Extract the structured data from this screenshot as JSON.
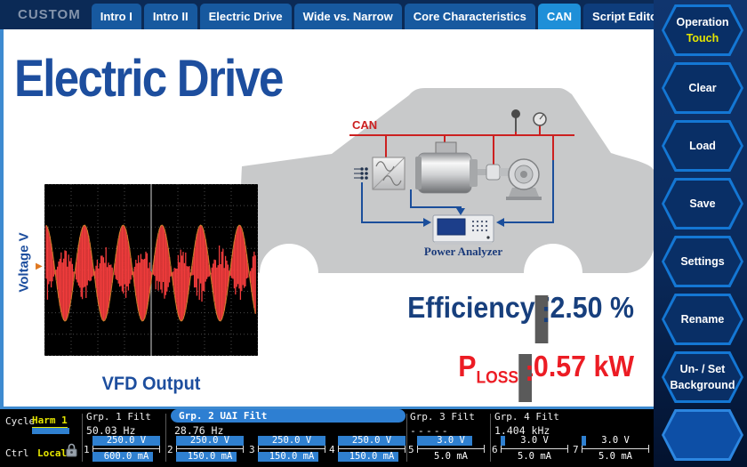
{
  "header": {
    "device_label": "CUSTOM",
    "tabs": [
      {
        "label": "Intro I"
      },
      {
        "label": "Intro II"
      },
      {
        "label": "Electric Drive"
      },
      {
        "label": "Wide vs. Narrow"
      },
      {
        "label": "Core Characteristics"
      },
      {
        "label": "CAN"
      },
      {
        "label": "Script Editor"
      }
    ]
  },
  "sidebar": {
    "buttons": [
      {
        "line1": "Operation",
        "line2": "Touch"
      },
      {
        "line1": "Clear"
      },
      {
        "line1": "Load"
      },
      {
        "line1": "Save"
      },
      {
        "line1": "Settings"
      },
      {
        "line1": "Rename"
      },
      {
        "line1": "Un- / Set",
        "line2": "Background"
      },
      {
        "line1": ""
      }
    ]
  },
  "main": {
    "title": "Electric Drive",
    "scope": {
      "y_axis_label": "Voltage V",
      "caption": "VFD Output",
      "trigger_marker": "▶"
    },
    "diagram": {
      "bus_label": "CAN",
      "analyzer_label": "Power Analyzer"
    },
    "metrics": {
      "efficiency_label": "Efficiency",
      "separator": ":",
      "efficiency_value": "72.50 %",
      "ploss_base": "P",
      "ploss_sub": "LOSS",
      "ploss_value": "10.57 kW"
    }
  },
  "statusbar": {
    "cycle_label": "Cycle",
    "cycle_value": "Harm 1",
    "ctrl_label": "Ctrl",
    "ctrl_value": "Local",
    "groups": [
      {
        "name": "Grp. 1 Filt",
        "freq": "50.03 Hz"
      },
      {
        "name": "Grp. 2 U∆I Filt",
        "freq": "28.76 Hz"
      },
      {
        "name": "Grp. 3 Filt",
        "freq": "-----"
      },
      {
        "name": "Grp. 4 Filt",
        "freq": "1.404 kHz"
      }
    ],
    "channels": [
      {
        "num": "1",
        "v": "250.0 V",
        "a": "600.0 mA",
        "vbar": 1,
        "abar": 0.9
      },
      {
        "num": "2",
        "v": "250.0 V",
        "a": "150.0 mA",
        "vbar": 1,
        "abar": 0.9
      },
      {
        "num": "3",
        "v": "250.0 V",
        "a": "150.0 mA",
        "vbar": 1,
        "abar": 0.9
      },
      {
        "num": "4",
        "v": "250.0 V",
        "a": "150.0 mA",
        "vbar": 1,
        "abar": 0.9
      },
      {
        "num": "5",
        "v": "3.0 V",
        "a": "5.0 mA",
        "vbar": 0.82,
        "abar": 0
      },
      {
        "num": "6",
        "v": "3.0 V",
        "a": "5.0 mA",
        "vbar": 0.06,
        "abar": 0
      },
      {
        "num": "7",
        "v": "3.0 V",
        "a": "5.0 mA",
        "vbar": 0.06,
        "abar": 0
      }
    ]
  },
  "colors": {
    "header_navy": "#0b2a56",
    "tab_blue": "#17599f",
    "active_tab_blue": "#1e8fd8",
    "title_blue": "#1d4e9e",
    "alert_red": "#ec1c24",
    "bar_blue": "#2f80d0",
    "highlight_yellow": "#e6e600",
    "waveform_red": "#f23c3c"
  }
}
